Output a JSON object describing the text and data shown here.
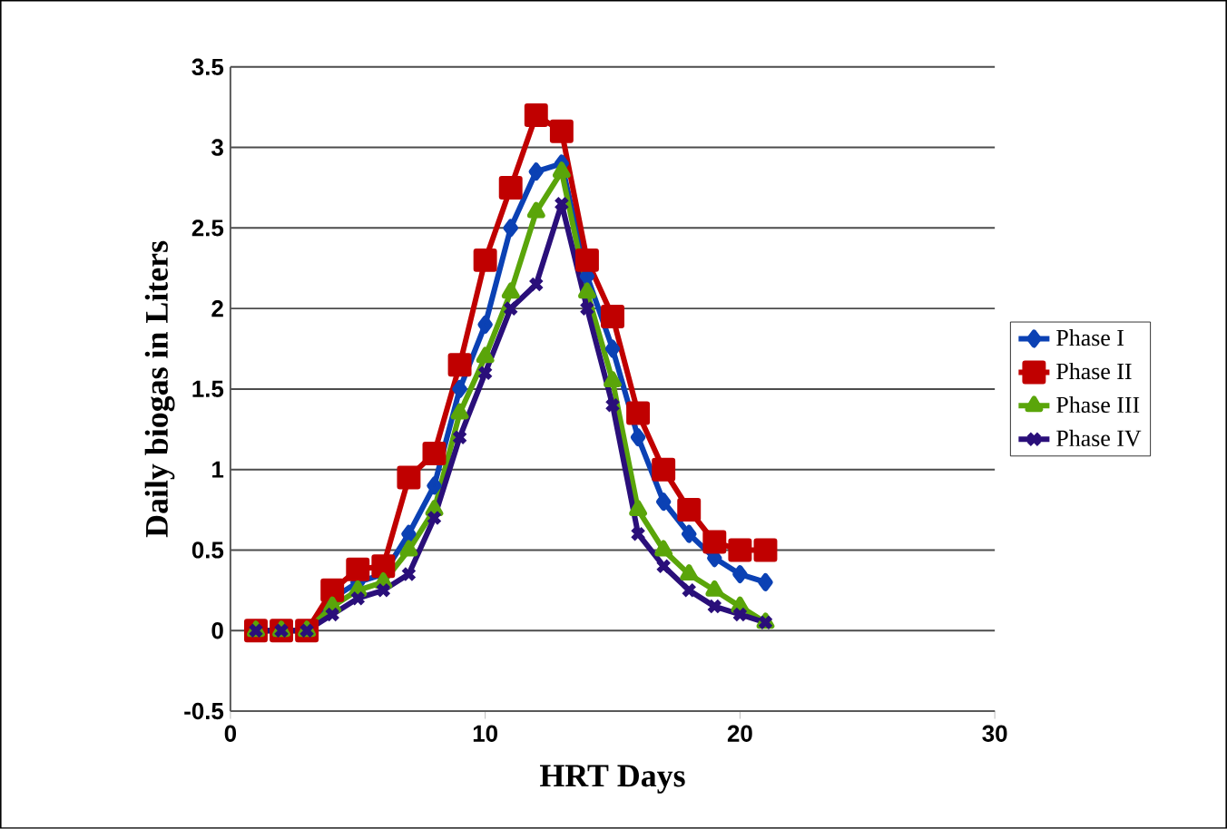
{
  "chart_data": {
    "type": "line",
    "xlabel": "HRT Days",
    "ylabel": "Daily biogas in Liters",
    "xlim": [
      0,
      30
    ],
    "xticks": [
      0,
      10,
      20,
      30
    ],
    "ylim": [
      -0.5,
      3.5
    ],
    "yticks": [
      -0.5,
      0,
      0.5,
      1,
      1.5,
      2,
      2.5,
      3,
      3.5
    ],
    "grid": "y",
    "legend": "right",
    "series": [
      {
        "name": "Phase I",
        "color": "#0b41b4",
        "marker": "diamond",
        "x": [
          1,
          2,
          3,
          4,
          5,
          6,
          7,
          8,
          9,
          10,
          11,
          12,
          13,
          14,
          15,
          16,
          17,
          18,
          19,
          20,
          21
        ],
        "values": [
          0,
          0,
          0,
          0.2,
          0.3,
          0.35,
          0.6,
          0.9,
          1.5,
          1.9,
          2.5,
          2.85,
          2.9,
          2.2,
          1.75,
          1.2,
          0.8,
          0.6,
          0.45,
          0.35,
          0.3
        ]
      },
      {
        "name": "Phase II",
        "color": "#c00000",
        "marker": "square",
        "x": [
          1,
          2,
          3,
          4,
          5,
          6,
          7,
          8,
          9,
          10,
          11,
          12,
          13,
          14,
          15,
          16,
          17,
          18,
          19,
          20,
          21
        ],
        "values": [
          0,
          0,
          0,
          0.25,
          0.38,
          0.4,
          0.95,
          1.1,
          1.65,
          2.3,
          2.75,
          3.2,
          3.1,
          2.3,
          1.95,
          1.35,
          1.0,
          0.75,
          0.55,
          0.5,
          0.5
        ]
      },
      {
        "name": "Phase III",
        "color": "#5aa50a",
        "marker": "triangle",
        "x": [
          1,
          2,
          3,
          4,
          5,
          6,
          7,
          8,
          9,
          10,
          11,
          12,
          13,
          14,
          15,
          16,
          17,
          18,
          19,
          20,
          21
        ],
        "values": [
          0,
          0,
          0,
          0.15,
          0.25,
          0.3,
          0.5,
          0.75,
          1.35,
          1.7,
          2.1,
          2.6,
          2.85,
          2.1,
          1.55,
          0.75,
          0.5,
          0.35,
          0.25,
          0.15,
          0.05
        ]
      },
      {
        "name": "Phase IV",
        "color": "#2a0f7a",
        "marker": "cross",
        "x": [
          1,
          2,
          3,
          4,
          5,
          6,
          7,
          8,
          9,
          10,
          11,
          12,
          13,
          14,
          15,
          16,
          17,
          18,
          19,
          20,
          21
        ],
        "values": [
          0,
          0,
          0,
          0.1,
          0.2,
          0.25,
          0.35,
          0.7,
          1.2,
          1.6,
          2.0,
          2.15,
          2.65,
          2.0,
          1.4,
          0.6,
          0.4,
          0.25,
          0.15,
          0.1,
          0.05
        ]
      }
    ]
  }
}
